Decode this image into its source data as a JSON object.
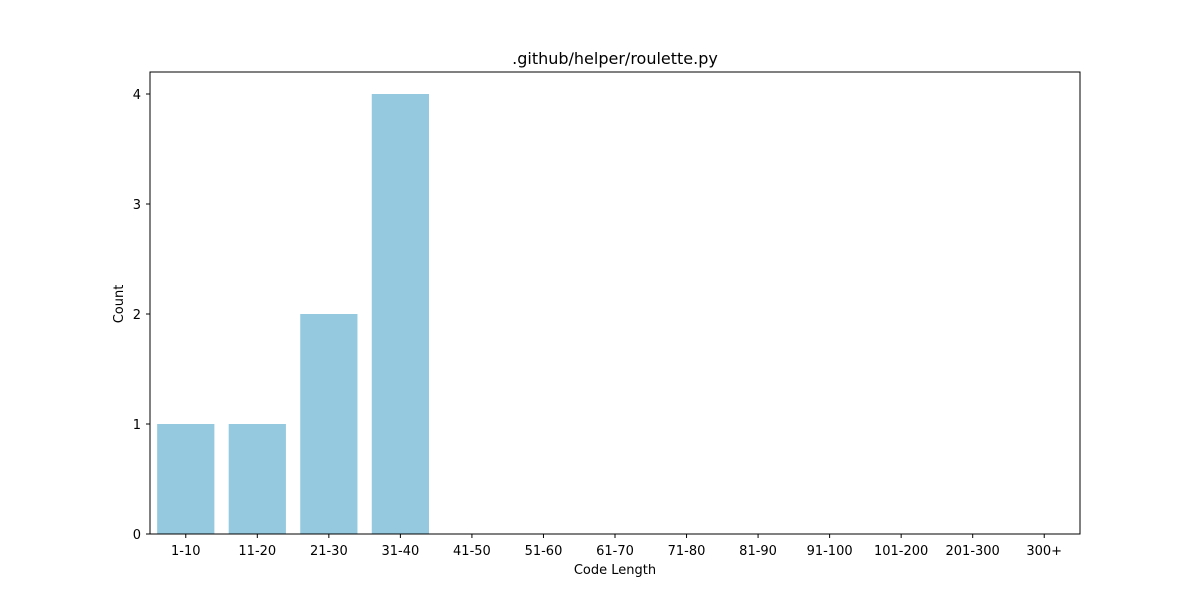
{
  "chart_data": {
    "type": "bar",
    "title": ".github/helper/roulette.py",
    "xlabel": "Code Length",
    "ylabel": "Count",
    "categories": [
      "1-10",
      "11-20",
      "21-30",
      "31-40",
      "41-50",
      "51-60",
      "61-70",
      "71-80",
      "81-90",
      "91-100",
      "101-200",
      "201-300",
      "300+"
    ],
    "values": [
      1,
      1,
      2,
      4,
      0,
      0,
      0,
      0,
      0,
      0,
      0,
      0,
      0
    ],
    "ylim": [
      0,
      4.2
    ],
    "yticks": [
      0,
      1,
      2,
      3,
      4
    ],
    "bar_color": "#95c9df",
    "grid": false,
    "legend": "none"
  }
}
